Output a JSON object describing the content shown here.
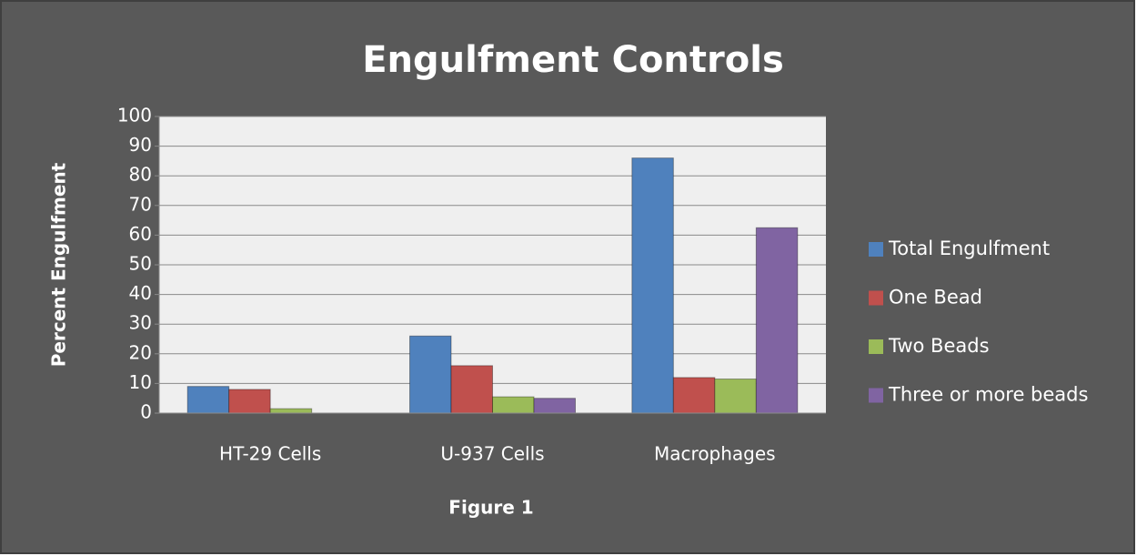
{
  "chart_data": {
    "type": "bar",
    "title": "Engulfment Controls",
    "x_label": "Figure 1",
    "y_label": "Percent Engulfment",
    "categories": [
      "HT-29 Cells",
      "U-937 Cells",
      "Macrophages"
    ],
    "series": [
      {
        "name": "Total Engulfment",
        "color": "#4f81bd",
        "values": [
          9,
          26,
          86
        ]
      },
      {
        "name": "One Bead",
        "color": "#c0504d",
        "values": [
          8,
          16,
          12
        ]
      },
      {
        "name": "Two Beads",
        "color": "#9bbb59",
        "values": [
          1.5,
          5.5,
          11.5
        ]
      },
      {
        "name": "Three or more beads",
        "color": "#8064a2",
        "values": [
          0,
          5,
          62.5
        ]
      }
    ],
    "ylim": [
      0,
      100
    ],
    "yticks": [
      0,
      10,
      20,
      30,
      40,
      50,
      60,
      70,
      80,
      90,
      100
    ],
    "grid": true,
    "legend": "right"
  }
}
